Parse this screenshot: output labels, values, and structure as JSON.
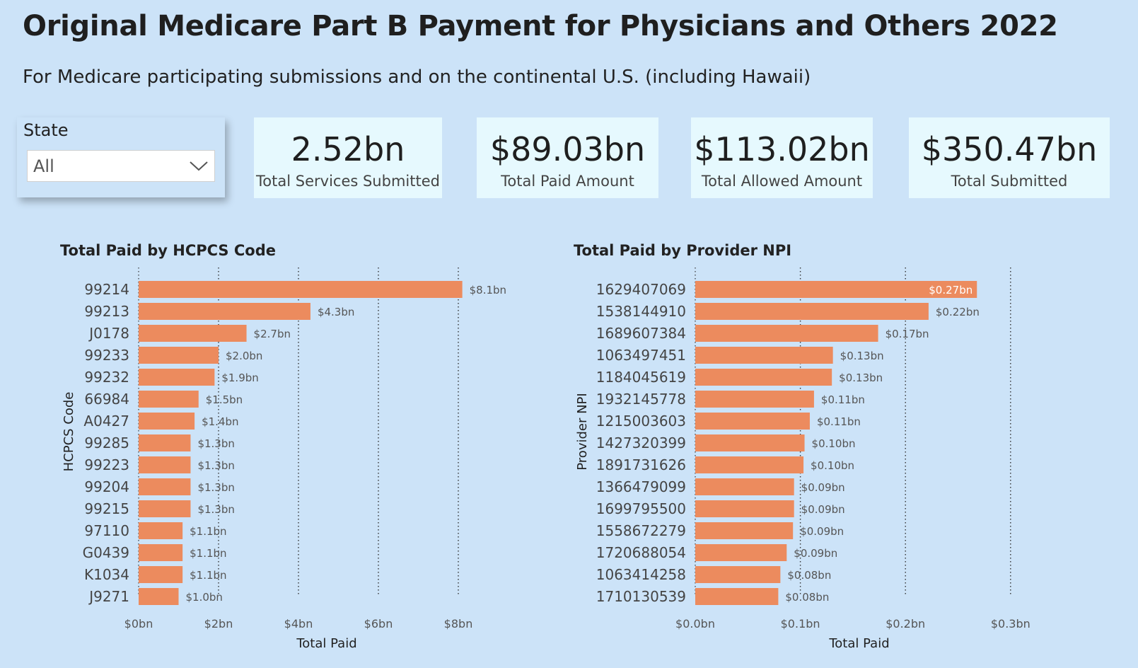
{
  "header": {
    "title": "Original Medicare Part B Payment for Physicians and Others 2022",
    "subtitle": "For Medicare participating submissions and on the continental U.S. (including Hawaii)"
  },
  "slicer": {
    "label": "State",
    "value": "All"
  },
  "cards": [
    {
      "value": "2.52bn",
      "label": "Total Services Submitted"
    },
    {
      "value": "$89.03bn",
      "label": "Total Paid Amount"
    },
    {
      "value": "$113.02bn",
      "label": "Total Allowed Amount"
    },
    {
      "value": "$350.47bn",
      "label": "Total Submitted"
    }
  ],
  "colors": {
    "bar": "#ec8b5e",
    "background": "#cce3f8",
    "card": "#e6f9fe"
  },
  "chart_data": [
    {
      "type": "bar",
      "orientation": "horizontal",
      "title": "Total Paid by HCPCS Code",
      "xlabel": "Total Paid",
      "ylabel": "HCPCS Code",
      "categories": [
        "99214",
        "99213",
        "J0178",
        "99233",
        "99232",
        "66984",
        "A0427",
        "99285",
        "99223",
        "99204",
        "99215",
        "97110",
        "G0439",
        "K1034",
        "J9271"
      ],
      "values": [
        8.1,
        4.3,
        2.7,
        2.0,
        1.9,
        1.5,
        1.4,
        1.3,
        1.3,
        1.3,
        1.3,
        1.1,
        1.1,
        1.1,
        1.0
      ],
      "value_labels": [
        "$8.1bn",
        "$4.3bn",
        "$2.7bn",
        "$2.0bn",
        "$1.9bn",
        "$1.5bn",
        "$1.4bn",
        "$1.3bn",
        "$1.3bn",
        "$1.3bn",
        "$1.3bn",
        "$1.1bn",
        "$1.1bn",
        "$1.1bn",
        "$1.0bn"
      ],
      "xticks": [
        0,
        2,
        4,
        6,
        8
      ],
      "xtick_labels": [
        "$0bn",
        "$2bn",
        "$4bn",
        "$6bn",
        "$8bn"
      ],
      "xlim": [
        0,
        8.0
      ],
      "grid": true
    },
    {
      "type": "bar",
      "orientation": "horizontal",
      "title": "Total Paid by Provider NPI",
      "xlabel": "Total Paid",
      "ylabel": "Provider NPI",
      "categories": [
        "1629407069",
        "1538144910",
        "1689607384",
        "1063497451",
        "1184045619",
        "1932145778",
        "1215003603",
        "1427320399",
        "1891731626",
        "1366479099",
        "1699795500",
        "1558672279",
        "1720688054",
        "1063414258",
        "1710130539"
      ],
      "values": [
        0.268,
        0.222,
        0.174,
        0.131,
        0.13,
        0.113,
        0.109,
        0.104,
        0.103,
        0.094,
        0.094,
        0.093,
        0.087,
        0.081,
        0.079
      ],
      "value_labels": [
        "$0.27bn",
        "$0.22bn",
        "$0.17bn",
        "$0.13bn",
        "$0.13bn",
        "$0.11bn",
        "$0.11bn",
        "$0.10bn",
        "$0.10bn",
        "$0.09bn",
        "$0.09bn",
        "$0.09bn",
        "$0.09bn",
        "$0.08bn",
        "$0.08bn"
      ],
      "xticks": [
        0,
        0.1,
        0.2,
        0.3
      ],
      "xtick_labels": [
        "$0.0bn",
        "$0.1bn",
        "$0.2bn",
        "$0.3bn"
      ],
      "xlim": [
        0,
        0.3
      ],
      "grid": true
    }
  ]
}
